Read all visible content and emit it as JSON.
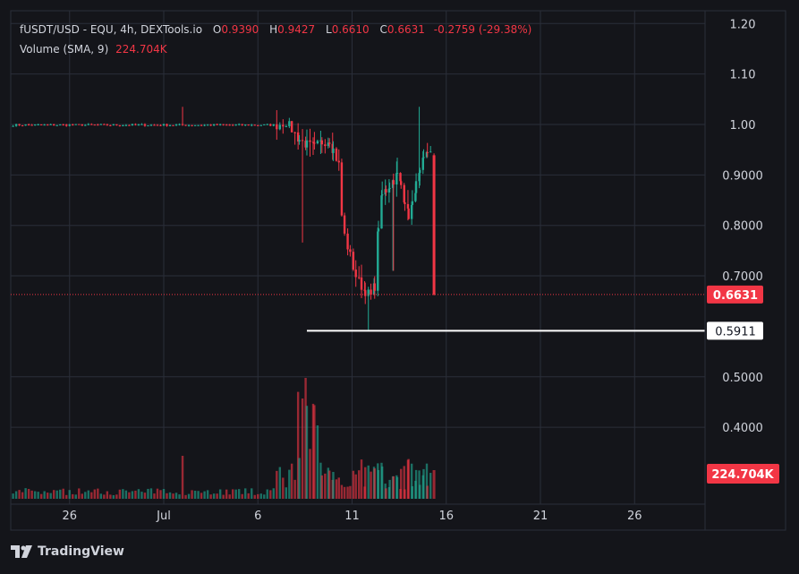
{
  "legend": {
    "symbol": "fUSDT/USD - EQU, 4h, DEXTools.io",
    "o_label": "O",
    "o": "0.9390",
    "h_label": "H",
    "h": "0.9427",
    "l_label": "L",
    "l": "0.6610",
    "c_label": "C",
    "c": "0.6631",
    "change": "-0.2759 (-29.38%)",
    "volume_label": "Volume (SMA, 9)",
    "volume_value": "224.704K"
  },
  "price_axis": {
    "ticks": [
      "1.20",
      "1.10",
      "1.00",
      "0.9000",
      "0.8000",
      "0.7000",
      "0.5000",
      "0.4000"
    ],
    "tick_values": [
      1.2,
      1.1,
      1.0,
      0.9,
      0.8,
      0.7,
      0.5,
      0.4
    ],
    "current_price_label": "0.6631",
    "current_price": 0.6631,
    "horizontal_line_label": "0.5911",
    "horizontal_line_price": 0.5911,
    "volume_badge": "224.704K"
  },
  "time_axis": {
    "labels": [
      "26",
      "Jul",
      "6",
      "11",
      "16",
      "21",
      "26"
    ]
  },
  "branding": {
    "text": "TradingView"
  },
  "colors": {
    "background": "#14151a",
    "up": "#22ab94",
    "down": "#f23645",
    "text": "#d1d4dc",
    "grid": "#2a2e39"
  },
  "chart_data": {
    "type": "candlestick",
    "interval": "4h",
    "price_range": [
      0.33,
      1.225
    ],
    "grid": true,
    "legend_position": "top-left",
    "segments": [
      {
        "description": "flat near 1.00 from late June to Jul 7",
        "day_start": 22.0,
        "day_end": 7.0,
        "price": 0.999
      },
      {
        "description": "spike wick Jul 1",
        "day": 1.0,
        "high": 1.035
      },
      {
        "description": "decline Jul 7-9",
        "day_start": 7.0,
        "day_end": 9.3,
        "from": 0.998,
        "to": 0.95
      },
      {
        "description": "crash Jul 9-11",
        "day_start": 9.3,
        "day_end": 11.0,
        "low": 0.5911,
        "close": 0.67
      },
      {
        "description": "recovery Jul 11-14",
        "day_start": 11.0,
        "day_end": 14.0,
        "high": 1.035,
        "to": 0.94
      },
      {
        "description": "final drop Jul 14",
        "day": 14.3,
        "open": 0.939,
        "high": 0.9427,
        "low": 0.661,
        "close": 0.6631
      }
    ],
    "volume_peak_day": 7.5,
    "volume_peak_relative": 1.0
  }
}
